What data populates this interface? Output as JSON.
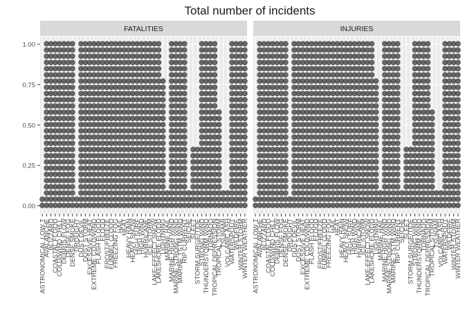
{
  "chart_data": {
    "type": "dotplot",
    "title": "Total number of incidents",
    "xlabel": "",
    "ylabel": "",
    "ylim": [
      0,
      1.05
    ],
    "y_ticks": [
      {
        "value": 0.0,
        "label": "0.00"
      },
      {
        "value": 0.25,
        "label": "0.25"
      },
      {
        "value": 0.5,
        "label": "0.50"
      },
      {
        "value": 0.75,
        "label": "0.75"
      },
      {
        "value": 1.0,
        "label": "1.00"
      }
    ],
    "dot_step": 0.0385,
    "grid": true,
    "legend": "none",
    "colors": {
      "dot_fill": "#595959",
      "dot_stroke": "#1a1a1a",
      "panel_bg": "#ebebeb",
      "strip_bg": "#d9d9d9",
      "grid_major": "#ffffff",
      "grid_minor": "#f2f2f2"
    },
    "categories": [
      "ASTRONOMICAL LOW T",
      "AVALANCHE",
      "BLIZZARD",
      "COASTAL FLOOD",
      "COLD/WIND CHILL",
      "DEBRIS FLOW",
      "DENSE FOG",
      "DENSE SMOKE",
      "DROUGHT",
      "DUST DEVIL",
      "DUST STORM",
      "EXCESSIVE HEAT",
      "EXTREME COLD/WIND",
      "FLASH FLOOD",
      "FLOOD",
      "FROST/FREEZE",
      "FUNNEL CLOUD",
      "FREEZING FOG",
      "HAIL",
      "HEAT",
      "HEAVY RAIN",
      "HEAVY SNOW",
      "HIGH SURF",
      "HIGH WIND",
      "HURRICANE",
      "ICE STORM",
      "LAKE-EFFECT SNOW",
      "LAKESHORE FLOOD",
      "LIGHTNING",
      "MARINE HAIL",
      "MARINE HIGH WIND",
      "MARINE STRONG WIND",
      "MARINE TSTM WIND",
      "RIP CURRENT",
      "SEICHE",
      "SLEET",
      "STORM SURGE/TIDE",
      "STRONG WIND",
      "THUNDERSTORM WIND",
      "TORNADO",
      "TROPICAL DEPRESSION",
      "TROPICAL STORM",
      "TSUNAMI",
      "VOLCANIC ASH",
      "WATERSPOUT",
      "WILDFIRE",
      "WINTER STORM",
      "WINTER WEATHER"
    ],
    "panels": [
      {
        "name": "FATALITIES",
        "values": [
          0.038,
          1.0,
          1.0,
          1.0,
          1.0,
          1.0,
          1.0,
          1.0,
          0.038,
          1.0,
          1.0,
          1.0,
          1.0,
          1.0,
          1.0,
          1.0,
          1.0,
          1.0,
          1.0,
          1.0,
          1.0,
          1.0,
          1.0,
          1.0,
          1.0,
          1.0,
          1.0,
          1.0,
          0.77,
          0.077,
          1.0,
          1.0,
          1.0,
          1.0,
          0.077,
          0.346,
          0.346,
          1.0,
          1.0,
          1.0,
          1.0,
          0.577,
          0.077,
          0.077,
          1.0,
          1.0,
          1.0,
          1.0
        ]
      },
      {
        "name": "INJURIES",
        "values": [
          0.038,
          1.0,
          1.0,
          1.0,
          1.0,
          1.0,
          1.0,
          1.0,
          0.038,
          1.0,
          1.0,
          1.0,
          1.0,
          1.0,
          1.0,
          1.0,
          1.0,
          1.0,
          1.0,
          1.0,
          1.0,
          1.0,
          1.0,
          1.0,
          1.0,
          1.0,
          1.0,
          1.0,
          0.77,
          0.077,
          1.0,
          1.0,
          1.0,
          1.0,
          0.077,
          0.346,
          0.346,
          1.0,
          1.0,
          1.0,
          1.0,
          0.577,
          0.077,
          0.077,
          1.0,
          1.0,
          1.0,
          1.0
        ]
      }
    ]
  }
}
